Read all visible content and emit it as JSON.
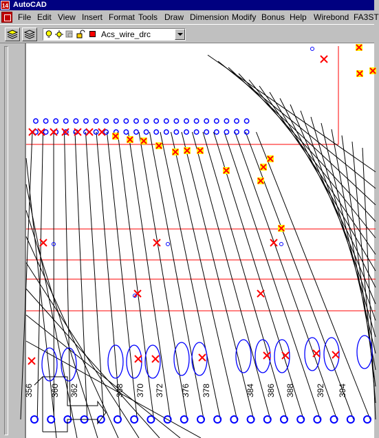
{
  "window": {
    "title": "AutoCAD"
  },
  "menu": [
    "File",
    "Edit",
    "View",
    "Insert",
    "Format",
    "Tools",
    "Draw",
    "Dimension",
    "Modify",
    "Bonus",
    "Help",
    "Wirebond",
    "FA3ST"
  ],
  "layer_toolbar": {
    "current_layer": "Acs_wire_drc",
    "layer_color": "#ff0000"
  },
  "pad_labels": [
    "356",
    "360",
    "362",
    "368",
    "370",
    "372",
    "376",
    "378",
    "384",
    "386",
    "388",
    "392",
    "394"
  ],
  "colors": {
    "wire": "#000000",
    "pad": "#0000ff",
    "error_marker": "#ff0000",
    "highlight": "#ffff00",
    "boundary": "#ff0000"
  }
}
